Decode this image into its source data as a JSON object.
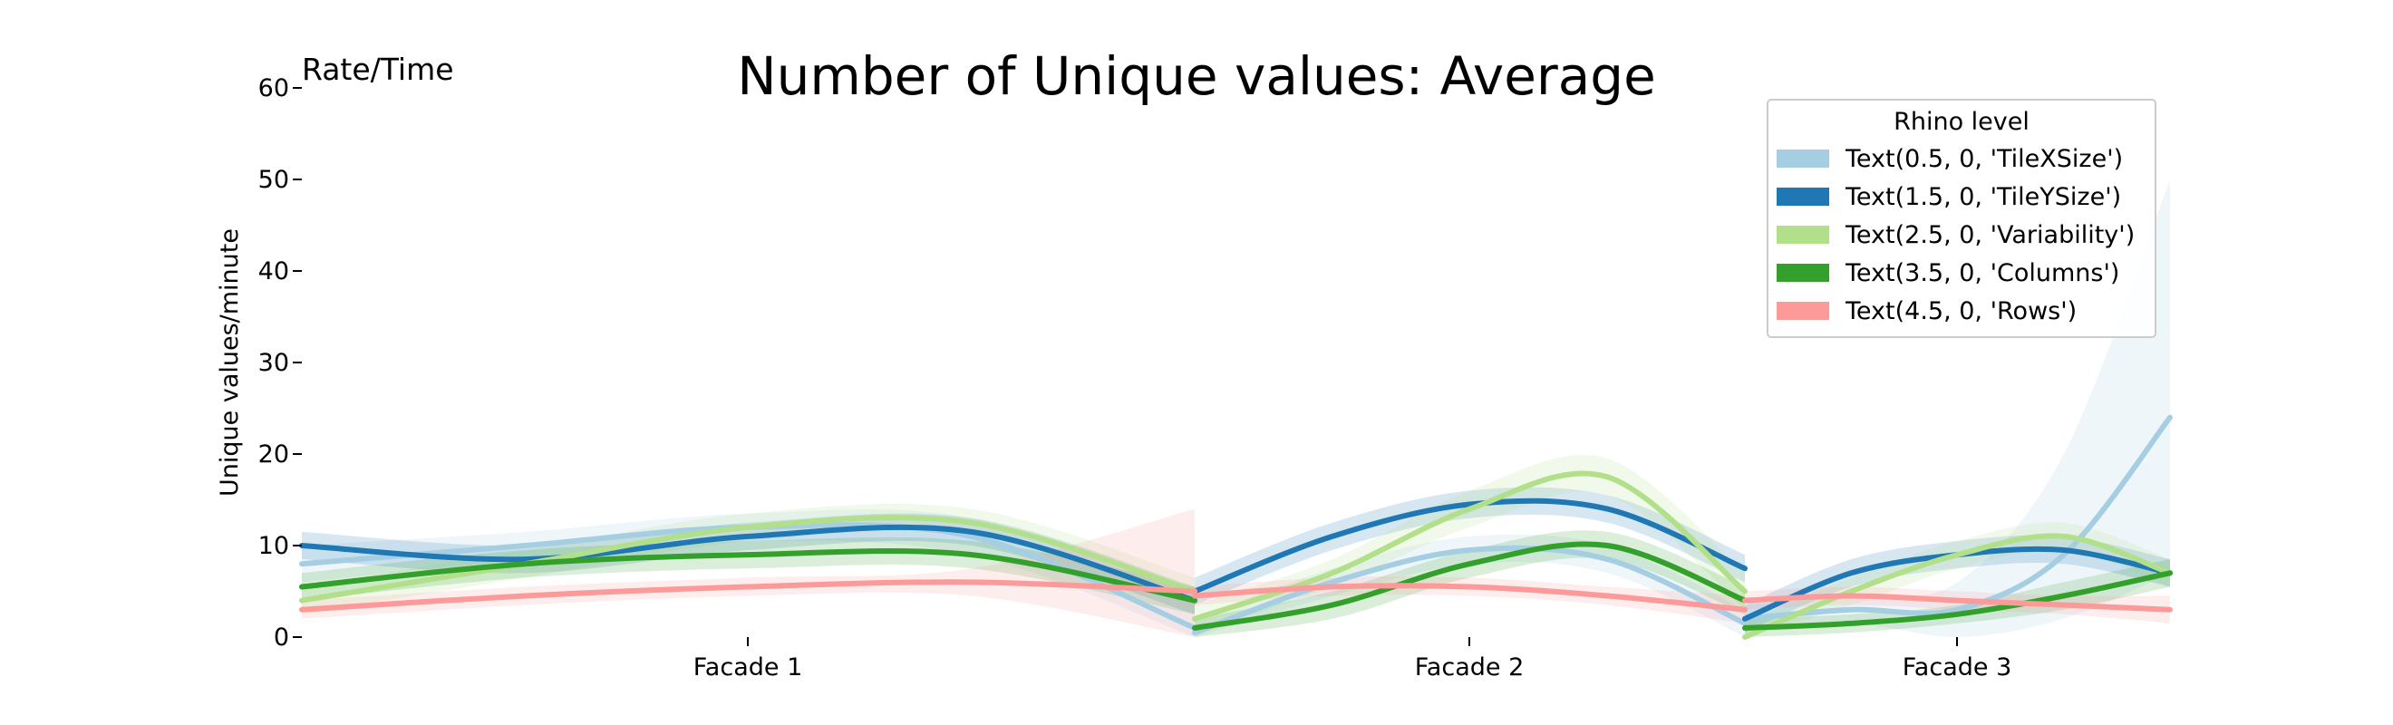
{
  "chart_data": {
    "type": "line",
    "title": "Number of Unique values: Average",
    "corner_label": "Rate/Time",
    "ylabel": "Unique values/minute",
    "xlabel": "",
    "ylim": [
      0,
      60
    ],
    "yticks": [
      0,
      10,
      20,
      30,
      40,
      50,
      60
    ],
    "grid": false,
    "legend": {
      "title": "Rhino level",
      "placement": "top-right"
    },
    "panels": [
      {
        "label": "Facade 1",
        "x_domain": [
          0,
          1
        ]
      },
      {
        "label": "Facade 2",
        "x_domain": [
          1,
          2
        ]
      },
      {
        "label": "Facade 3",
        "x_domain": [
          2,
          3
        ]
      }
    ],
    "series": [
      {
        "name": "Text(0.5, 0, 'TileXSize')",
        "color": "#a6cee3",
        "panels": [
          {
            "x": [
              0,
              0.25,
              0.5,
              0.75,
              1
            ],
            "y": [
              8,
              10,
              12,
              11,
              1
            ],
            "lower": [
              6,
              8.5,
              10.5,
              9,
              0
            ],
            "upper": [
              10,
              11.5,
              13.5,
              13,
              4
            ]
          },
          {
            "x": [
              0,
              0.25,
              0.5,
              0.75,
              1
            ],
            "y": [
              0.5,
              6,
              9.5,
              8.5,
              1.5
            ],
            "lower": [
              0,
              4.5,
              8,
              7,
              0
            ],
            "upper": [
              2,
              7.5,
              11,
              10,
              3
            ]
          },
          {
            "x": [
              0,
              0.25,
              0.5,
              0.75,
              1
            ],
            "y": [
              2,
              3,
              3,
              9,
              24
            ],
            "lower": [
              0.5,
              1.5,
              0,
              2,
              7
            ],
            "upper": [
              3.5,
              4.5,
              6,
              20,
              50
            ]
          }
        ]
      },
      {
        "name": "Text(1.5, 0, 'TileYSize')",
        "color": "#1f78b4",
        "panels": [
          {
            "x": [
              0,
              0.25,
              0.5,
              0.75,
              1
            ],
            "y": [
              10,
              8.5,
              11,
              11.5,
              4
            ],
            "lower": [
              8.5,
              7,
              9.5,
              10,
              2.5
            ],
            "upper": [
              11.5,
              10,
              12.5,
              13,
              5.5
            ]
          },
          {
            "x": [
              0,
              0.25,
              0.5,
              0.75,
              1
            ],
            "y": [
              5,
              11,
              14.5,
              14,
              7.5
            ],
            "lower": [
              3.5,
              9.5,
              13,
              12.5,
              6
            ],
            "upper": [
              6.5,
              12.5,
              16,
              15.5,
              9
            ]
          },
          {
            "x": [
              0,
              0.25,
              0.5,
              0.75,
              1
            ],
            "y": [
              2,
              7,
              9,
              9.5,
              7
            ],
            "lower": [
              0.5,
              5.5,
              7.5,
              8,
              5.5
            ],
            "upper": [
              3.5,
              8.5,
              10.5,
              11,
              8.5
            ]
          }
        ]
      },
      {
        "name": "Text(2.5, 0, 'Variability')",
        "color": "#b2df8a",
        "panels": [
          {
            "x": [
              0,
              0.25,
              0.5,
              0.75,
              1
            ],
            "y": [
              4,
              8,
              12,
              12.5,
              5
            ],
            "lower": [
              2.5,
              6.5,
              10.5,
              11,
              3.5
            ],
            "upper": [
              5.5,
              9.5,
              13.5,
              14,
              6.5
            ]
          },
          {
            "x": [
              0,
              0.25,
              0.5,
              0.75,
              1
            ],
            "y": [
              2,
              7,
              14,
              17.5,
              5
            ],
            "lower": [
              0.5,
              5.5,
              12,
              15.5,
              3
            ],
            "upper": [
              3.5,
              8.5,
              16,
              19.5,
              7
            ]
          },
          {
            "x": [
              0,
              0.25,
              0.5,
              0.75,
              1
            ],
            "y": [
              0,
              5,
              9,
              11,
              7
            ],
            "lower": [
              0,
              3.5,
              7.5,
              9.5,
              5.5
            ],
            "upper": [
              1.5,
              6.5,
              10.5,
              12.5,
              8.5
            ]
          }
        ]
      },
      {
        "name": "Text(3.5, 0, 'Columns')",
        "color": "#33a02c",
        "panels": [
          {
            "x": [
              0,
              0.25,
              0.5,
              0.75,
              1
            ],
            "y": [
              5.5,
              8,
              9,
              9,
              4
            ],
            "lower": [
              4,
              6.5,
              7.5,
              7.5,
              2.5
            ],
            "upper": [
              7,
              9.5,
              10.5,
              10.5,
              5.5
            ]
          },
          {
            "x": [
              0,
              0.25,
              0.5,
              0.75,
              1
            ],
            "y": [
              1,
              3.5,
              8,
              10,
              4
            ],
            "lower": [
              0,
              2,
              6.5,
              8.5,
              2.5
            ],
            "upper": [
              2,
              5,
              9.5,
              11.5,
              5.5
            ]
          },
          {
            "x": [
              0,
              0.25,
              0.5,
              0.75,
              1
            ],
            "y": [
              1,
              1.5,
              2.5,
              4.5,
              7
            ],
            "lower": [
              0,
              0.5,
              1.5,
              3,
              5.5
            ],
            "upper": [
              2,
              2.5,
              3.5,
              6,
              8.5
            ]
          }
        ]
      },
      {
        "name": "Text(4.5, 0, 'Rows')",
        "color": "#fb9a99",
        "panels": [
          {
            "x": [
              0,
              0.25,
              0.5,
              0.75,
              1
            ],
            "y": [
              3,
              4.5,
              5.5,
              6,
              5
            ],
            "lower": [
              2,
              3.5,
              4.5,
              4.5,
              0
            ],
            "upper": [
              4,
              5.5,
              6.5,
              7.5,
              14
            ]
          },
          {
            "x": [
              0,
              0.25,
              0.5,
              0.75,
              1
            ],
            "y": [
              4.5,
              5.5,
              5.5,
              4.5,
              3
            ],
            "lower": [
              3.5,
              4.5,
              4.5,
              3.5,
              1.5
            ],
            "upper": [
              5.5,
              6.5,
              6.5,
              5.5,
              4.5
            ]
          },
          {
            "x": [
              0,
              0.25,
              0.5,
              0.75,
              1
            ],
            "y": [
              4,
              4.5,
              4,
              3.5,
              3
            ],
            "lower": [
              3,
              3.5,
              3,
              2.5,
              1.5
            ],
            "upper": [
              5,
              5.5,
              5,
              4.5,
              4.5
            ]
          }
        ]
      }
    ]
  }
}
